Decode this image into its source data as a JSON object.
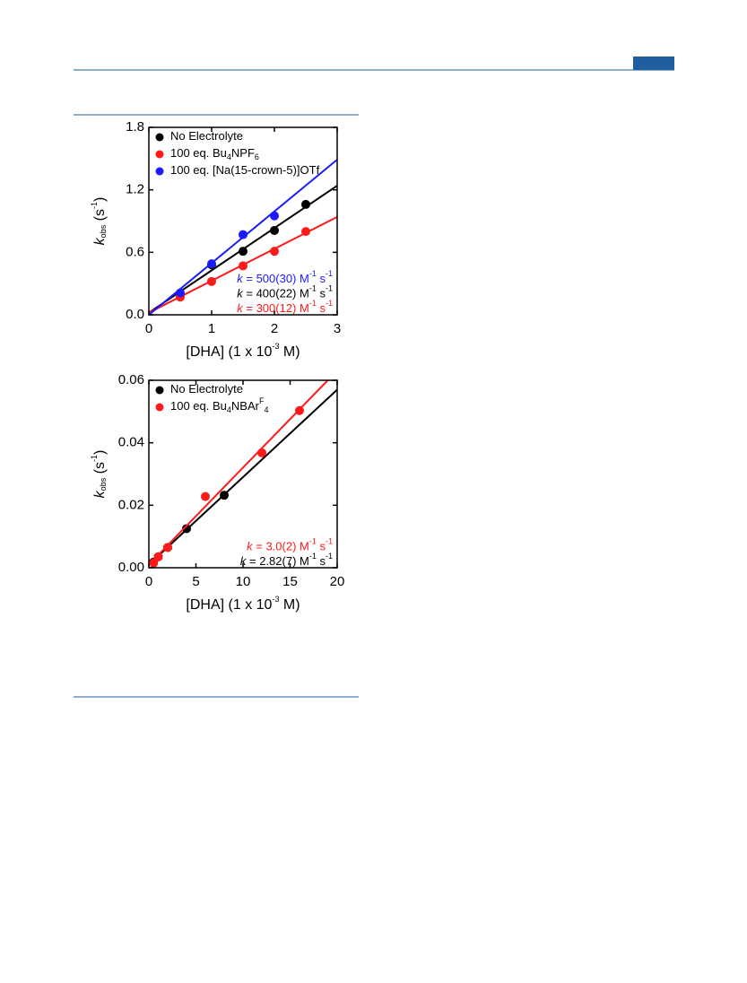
{
  "chart_data": [
    {
      "type": "scatter",
      "xlabel": {
        "parts": [
          "[DHA] (1 x 10",
          "-3",
          " M)"
        ],
        "styles": [
          "normal",
          "sup",
          "normal"
        ]
      },
      "ylabel": {
        "parts": [
          "k",
          "obs",
          " (s",
          "-1",
          ")"
        ],
        "styles": [
          "italic",
          "sub",
          "normal",
          "sup",
          "normal"
        ]
      },
      "xlim": [
        0,
        3
      ],
      "xticks": [
        0,
        1,
        2,
        3
      ],
      "ylim": [
        0,
        1.8
      ],
      "yticks": [
        {
          "value": 0,
          "label": "0.0"
        },
        0.6,
        1.2,
        1.8
      ],
      "series": [
        {
          "name": [
            "No Electrolyte"
          ],
          "name_styles": [
            "normal"
          ],
          "color": "#000000",
          "x": [
            0.5,
            1,
            1.5,
            2,
            2.5
          ],
          "values": [
            0.2,
            0.48,
            0.61,
            0.81,
            1.06
          ],
          "fit": {
            "x": [
              0,
              3
            ],
            "y": [
              0.02,
              1.24
            ]
          }
        },
        {
          "name": [
            "100 eq. Bu",
            "4",
            "NPF",
            "6"
          ],
          "name_styles": [
            "normal",
            "sub",
            "normal",
            "sub"
          ],
          "color": "#ff1a1a",
          "x": [
            0.5,
            1,
            1.5,
            2,
            2.5
          ],
          "values": [
            0.17,
            0.32,
            0.47,
            0.61,
            0.8
          ],
          "fit": {
            "x": [
              0,
              3
            ],
            "y": [
              0.02,
              0.94
            ]
          }
        },
        {
          "name": [
            "100 eq. [Na(15-crown-5)]OTf"
          ],
          "name_styles": [
            "normal"
          ],
          "color": "#1a1aff",
          "x": [
            0.5,
            1,
            1.5,
            2
          ],
          "values": [
            0.21,
            0.49,
            0.77,
            0.95
          ],
          "fit": {
            "x": [
              0,
              3
            ],
            "y": [
              0,
              1.49
            ]
          }
        }
      ],
      "annotations": [
        {
          "parts": [
            "k",
            " = 500(30) M",
            "-1",
            " s",
            "-1"
          ],
          "styles": [
            "italic",
            "normal",
            "sup",
            "normal",
            "sup"
          ],
          "color": "#1a1aff"
        },
        {
          "parts": [
            "k",
            " = 400(22) M",
            "-1",
            " s",
            "-1"
          ],
          "styles": [
            "italic",
            "normal",
            "sup",
            "normal",
            "sup"
          ],
          "color": "#000000"
        },
        {
          "parts": [
            "k",
            " = 300(12) M",
            "-1",
            " s",
            "-1"
          ],
          "styles": [
            "italic",
            "normal",
            "sup",
            "normal",
            "sup"
          ],
          "color": "#ff1a1a"
        }
      ]
    },
    {
      "type": "scatter",
      "xlabel": {
        "parts": [
          "[DHA] (1 x 10",
          "-3",
          " M)"
        ],
        "styles": [
          "normal",
          "sup",
          "normal"
        ]
      },
      "ylabel": {
        "parts": [
          "k",
          "obs",
          " (s",
          "-1",
          ")"
        ],
        "styles": [
          "italic",
          "sub",
          "normal",
          "sup",
          "normal"
        ]
      },
      "xlim": [
        0,
        20
      ],
      "xticks": [
        0,
        5,
        10,
        15,
        20
      ],
      "ylim": [
        0,
        0.06
      ],
      "yticks": [
        {
          "value": 0,
          "label": "0.00"
        },
        0.02,
        0.04,
        0.06
      ],
      "series": [
        {
          "name": [
            "No Electrolyte"
          ],
          "name_styles": [
            "normal"
          ],
          "color": "#000000",
          "x": [
            0.5,
            1,
            2,
            4,
            8
          ],
          "values": [
            0.0018,
            0.0035,
            0.0065,
            0.0125,
            0.0232
          ],
          "fit": {
            "x": [
              0,
              20
            ],
            "y": [
              0.001,
              0.057
            ]
          }
        },
        {
          "name": [
            "100 eq. Bu",
            "4",
            "NBAr",
            "F",
            "4"
          ],
          "name_styles": [
            "normal",
            "sub",
            "normal",
            "sup",
            "sub"
          ],
          "color": "#ff1a1a",
          "x": [
            0.5,
            1,
            2,
            6,
            12,
            16
          ],
          "values": [
            0.0015,
            0.0035,
            0.0065,
            0.0228,
            0.0368,
            0.0503
          ],
          "fit": {
            "x": [
              0,
              19
            ],
            "y": [
              0.001,
              0.06
            ]
          }
        }
      ],
      "annotations": [
        {
          "parts": [
            "k",
            " = 3.0(2) M",
            "-1",
            " s",
            "-1"
          ],
          "styles": [
            "italic",
            "normal",
            "sup",
            "normal",
            "sup"
          ],
          "color": "#ff1a1a"
        },
        {
          "parts": [
            "k",
            " = 2.82(7) M",
            "-1",
            " s",
            "-1"
          ],
          "styles": [
            "italic",
            "normal",
            "sup",
            "normal",
            "sup"
          ],
          "color": "#000000"
        }
      ]
    }
  ]
}
